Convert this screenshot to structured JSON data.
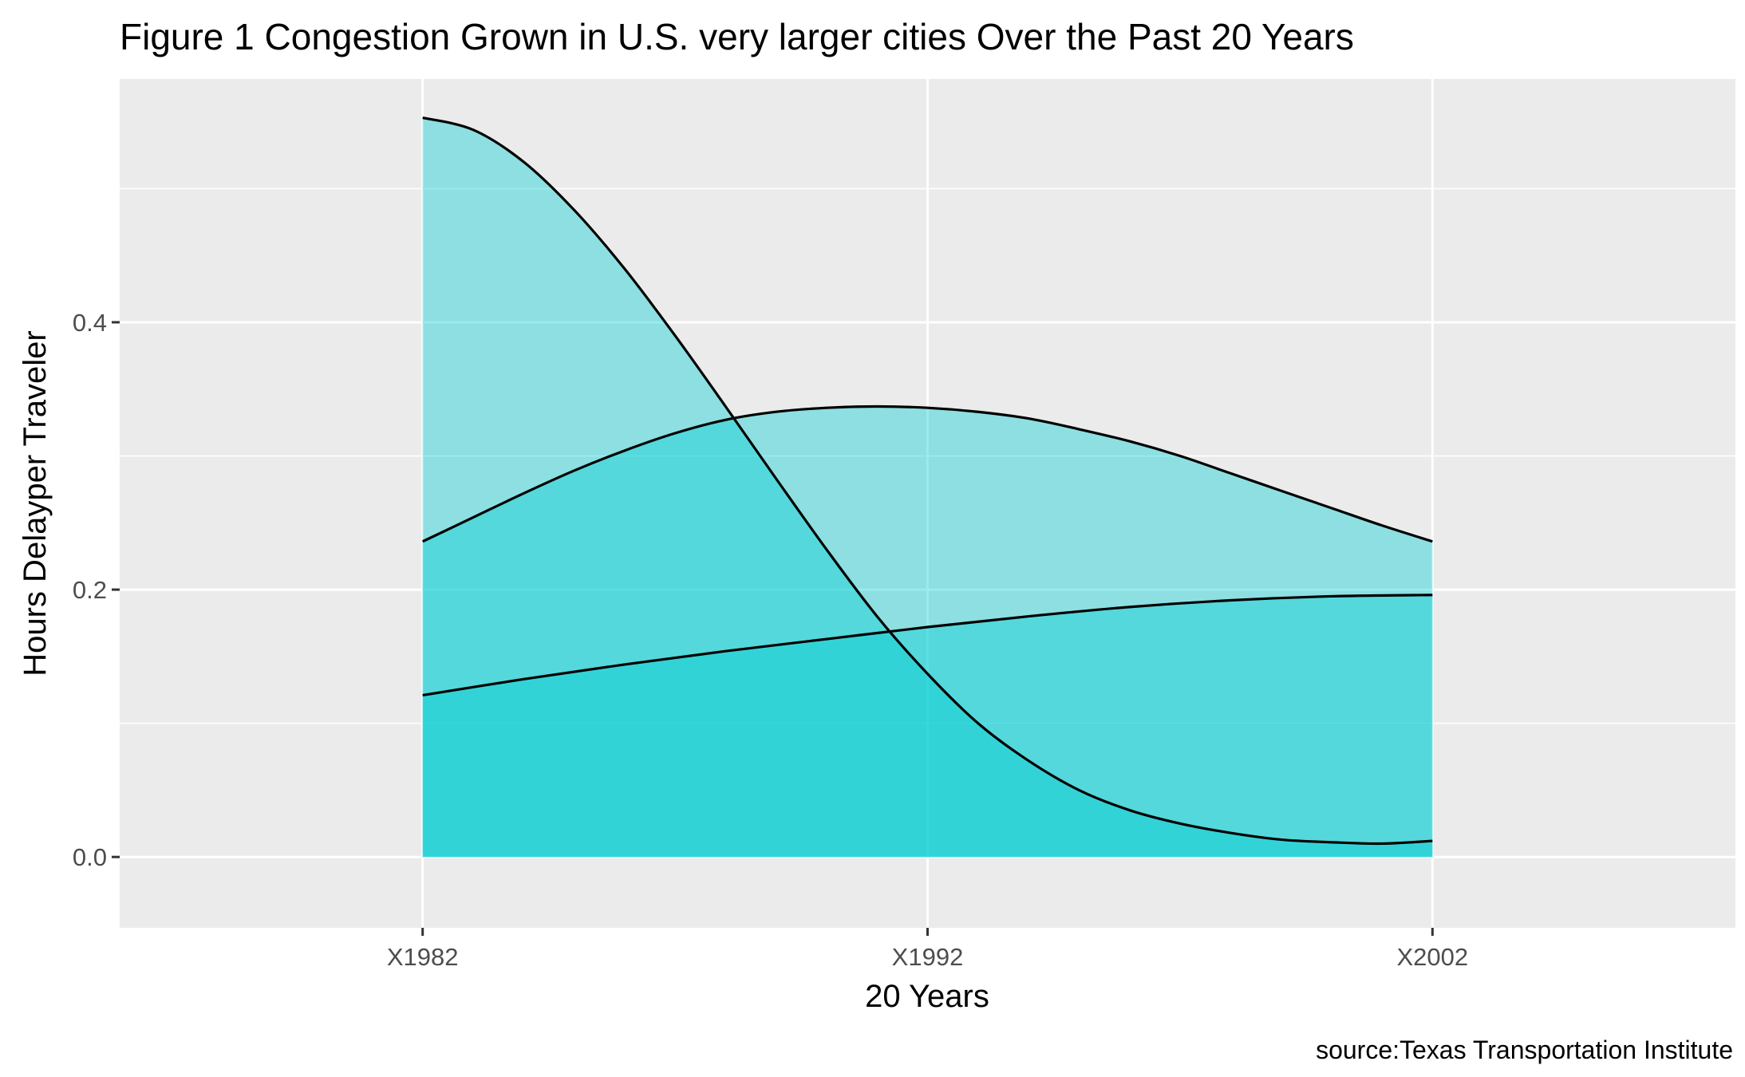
{
  "chart_data": {
    "type": "area",
    "title": "Figure 1 Congestion  Grown in U.S. very larger cities Over the Past 20 Years",
    "xlabel": "20 Years",
    "ylabel": "Hours Delayper Traveler",
    "caption": "source:Texas Transportation Institute",
    "categories": [
      "X1982",
      "X1992",
      "X2002"
    ],
    "x": [
      0,
      0.5,
      1
    ],
    "xlim": [
      -0.3,
      1.3
    ],
    "ylim": [
      -0.053,
      0.582
    ],
    "yticks": [
      0.0,
      0.2,
      0.4
    ],
    "ytick_labels": [
      "0.0",
      "0.2",
      "0.4"
    ],
    "grid": true,
    "fill_color": "#00ced1",
    "fill_opacity": 0.4,
    "line_color": "#000000",
    "panel_background": "#ebebeb",
    "series": [
      {
        "x": [
          0,
          0.05,
          0.1,
          0.15,
          0.2,
          0.25,
          0.3,
          0.35,
          0.4,
          0.45,
          0.5,
          0.55,
          0.6,
          0.65,
          0.7,
          0.75,
          0.8,
          0.85,
          0.9,
          0.95,
          1.0
        ],
        "values": [
          0.553,
          0.544,
          0.52,
          0.484,
          0.44,
          0.39,
          0.337,
          0.283,
          0.23,
          0.18,
          0.137,
          0.1,
          0.072,
          0.05,
          0.035,
          0.025,
          0.018,
          0.013,
          0.011,
          0.01,
          0.012
        ]
      },
      {
        "x": [
          0,
          0.05,
          0.1,
          0.15,
          0.2,
          0.25,
          0.3,
          0.35,
          0.4,
          0.45,
          0.5,
          0.55,
          0.6,
          0.65,
          0.7,
          0.75,
          0.8,
          0.85,
          0.9,
          0.95,
          1.0
        ],
        "values": [
          0.236,
          0.254,
          0.272,
          0.289,
          0.304,
          0.317,
          0.327,
          0.333,
          0.336,
          0.337,
          0.336,
          0.333,
          0.328,
          0.32,
          0.311,
          0.3,
          0.287,
          0.274,
          0.261,
          0.248,
          0.236
        ]
      },
      {
        "x": [
          0,
          0.1,
          0.2,
          0.3,
          0.4,
          0.5,
          0.6,
          0.7,
          0.8,
          0.9,
          1.0
        ],
        "values": [
          0.121,
          0.133,
          0.144,
          0.154,
          0.163,
          0.172,
          0.18,
          0.187,
          0.192,
          0.195,
          0.196
        ]
      }
    ]
  }
}
